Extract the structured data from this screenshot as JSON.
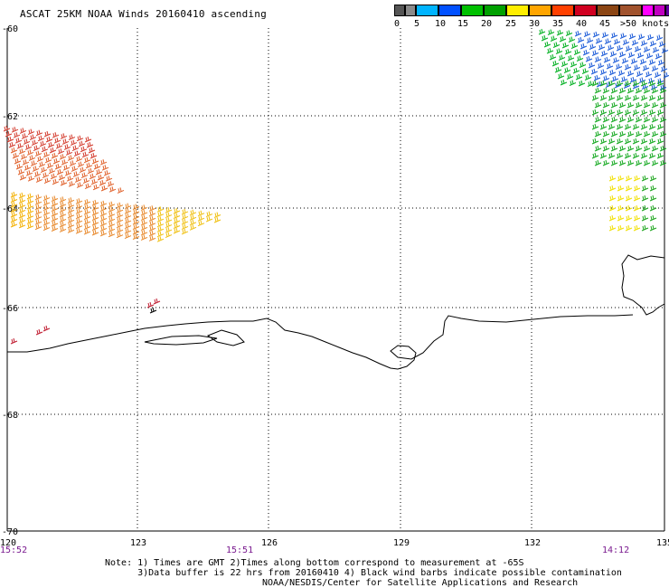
{
  "title": "ASCAT 25KM NOAA Winds 20160410 ascending",
  "legend": {
    "labels": [
      "0",
      "5",
      "10",
      "15",
      "20",
      "25",
      "30",
      "35",
      "40",
      "45",
      ">50 knots"
    ],
    "colors": [
      "#555555",
      "#8a8a8a",
      "#00b4ff",
      "#0050ff",
      "#00c000",
      "#00a000",
      "#ffee00",
      "#ffa500",
      "#ff4000",
      "#d00020",
      "#8b4513",
      "#a0522d",
      "#ff00ff",
      "#c000c0",
      "#6000a0"
    ]
  },
  "axes": {
    "lat_labels": [
      "-60",
      "-62",
      "-64",
      "-66",
      "-68",
      "-70"
    ],
    "lon_labels": [
      "120",
      "123",
      "126",
      "129",
      "132",
      "135"
    ]
  },
  "times": [
    "15:52",
    "15:51",
    "14:12"
  ],
  "note_lines": [
    "Note: 1) Times are GMT 2)Times along bottom correspond to measurement at -65S",
    "      3)Data buffer is 22 hrs from 20160410 4) Black wind barbs indicate possible contamination"
  ],
  "footer": "NOAA/NESDIS/Center for Satellite Applications and Research"
}
